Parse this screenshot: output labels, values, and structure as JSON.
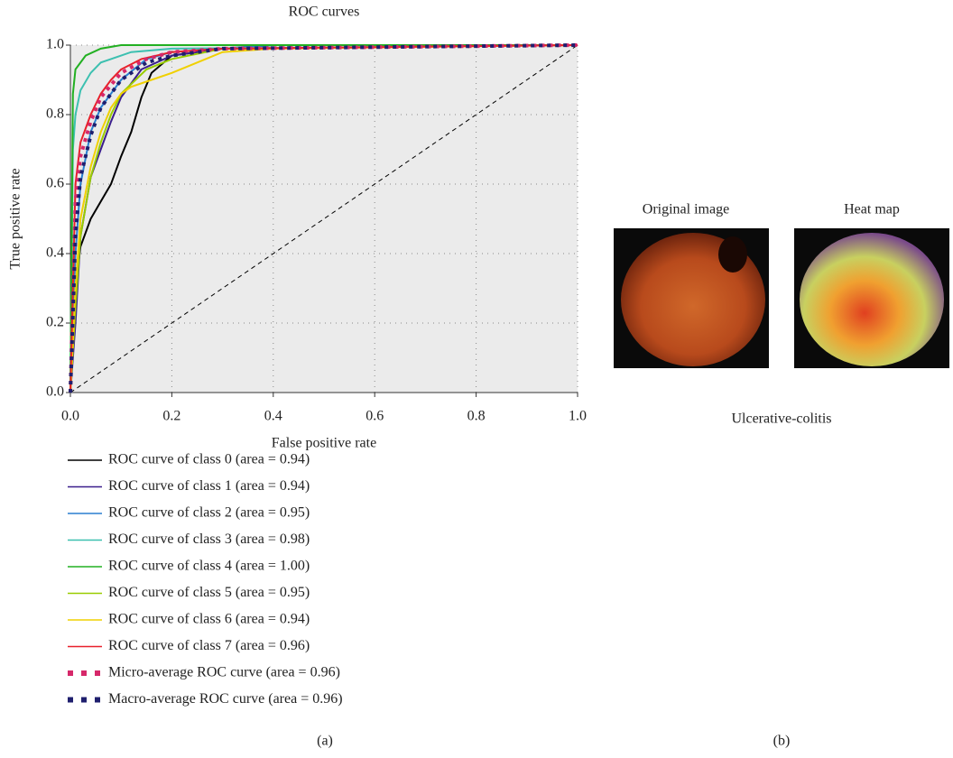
{
  "chart_data": {
    "type": "line",
    "title": "ROC curves",
    "xlabel": "False positive rate",
    "ylabel": "True positive rate",
    "xlim": [
      0,
      1
    ],
    "ylim": [
      0,
      1
    ],
    "xticks": [
      {
        "value": 0,
        "label": "0.0"
      },
      0.2,
      0.4,
      0.6,
      0.8,
      {
        "value": 1,
        "label": "1.0"
      }
    ],
    "yticks": [
      {
        "value": 0,
        "label": "0.0"
      },
      0.2,
      0.4,
      0.6,
      0.8,
      {
        "value": 1,
        "label": "1.0"
      }
    ],
    "grid": true,
    "series": [
      {
        "name": "ROC curve of class 0 (area = 0.94)",
        "color": "#000000",
        "x": [
          0,
          0.01,
          0.02,
          0.04,
          0.06,
          0.08,
          0.1,
          0.12,
          0.14,
          0.16,
          0.2,
          0.3,
          0.4,
          1
        ],
        "values": [
          0,
          0.3,
          0.42,
          0.5,
          0.55,
          0.6,
          0.68,
          0.75,
          0.85,
          0.92,
          0.97,
          0.99,
          1,
          1
        ]
      },
      {
        "name": "ROC curve of class 1 (area = 0.94)",
        "color": "#3a1e8c",
        "x": [
          0,
          0.01,
          0.02,
          0.04,
          0.06,
          0.08,
          0.1,
          0.14,
          0.2,
          0.3,
          1
        ],
        "values": [
          0,
          0.2,
          0.45,
          0.62,
          0.7,
          0.78,
          0.85,
          0.93,
          0.97,
          0.99,
          1
        ]
      },
      {
        "name": "ROC curve of class 2 (area = 0.95)",
        "color": "#2a7fd0",
        "x": [
          0,
          0.01,
          0.02,
          0.04,
          0.06,
          0.1,
          0.15,
          0.2,
          0.4,
          1
        ],
        "values": [
          0,
          0.4,
          0.6,
          0.75,
          0.82,
          0.9,
          0.96,
          0.98,
          1,
          1
        ]
      },
      {
        "name": "ROC curve of class 3 (area = 0.98)",
        "color": "#3cc0b0",
        "x": [
          0,
          0.005,
          0.01,
          0.02,
          0.04,
          0.06,
          0.08,
          0.12,
          0.2,
          1
        ],
        "values": [
          0,
          0.7,
          0.8,
          0.87,
          0.92,
          0.95,
          0.96,
          0.98,
          0.99,
          1
        ]
      },
      {
        "name": "ROC curve of class 4 (area = 1.00)",
        "color": "#22b022",
        "x": [
          0,
          0.005,
          0.01,
          0.03,
          0.06,
          0.1,
          1
        ],
        "values": [
          0,
          0.86,
          0.93,
          0.97,
          0.99,
          1,
          1
        ]
      },
      {
        "name": "ROC curve of class 5 (area = 0.95)",
        "color": "#99cc00",
        "x": [
          0,
          0.01,
          0.02,
          0.04,
          0.06,
          0.08,
          0.1,
          0.15,
          0.2,
          0.3,
          1
        ],
        "values": [
          0,
          0.25,
          0.45,
          0.62,
          0.72,
          0.8,
          0.86,
          0.93,
          0.96,
          0.99,
          1
        ]
      },
      {
        "name": "ROC curve of class 6 (area = 0.94)",
        "color": "#f0d000",
        "x": [
          0,
          0.01,
          0.02,
          0.04,
          0.06,
          0.08,
          0.1,
          0.12,
          0.16,
          0.2,
          0.25,
          0.3,
          0.4,
          1
        ],
        "values": [
          0,
          0.3,
          0.5,
          0.65,
          0.75,
          0.82,
          0.86,
          0.88,
          0.9,
          0.92,
          0.95,
          0.98,
          0.99,
          1
        ]
      },
      {
        "name": "ROC curve of class 7 (area = 0.96)",
        "color": "#e8202a",
        "x": [
          0,
          0.01,
          0.02,
          0.04,
          0.06,
          0.08,
          0.1,
          0.14,
          0.2,
          0.3,
          1
        ],
        "values": [
          0,
          0.6,
          0.72,
          0.8,
          0.86,
          0.9,
          0.93,
          0.96,
          0.98,
          0.99,
          1
        ]
      },
      {
        "name": "Micro-average ROC curve (area = 0.96)",
        "color": "#d6286a",
        "style": "dotted",
        "x": [
          0,
          0.01,
          0.02,
          0.04,
          0.06,
          0.1,
          0.15,
          0.2,
          0.3,
          1
        ],
        "values": [
          0,
          0.55,
          0.68,
          0.78,
          0.85,
          0.92,
          0.96,
          0.98,
          0.99,
          1
        ]
      },
      {
        "name": "Macro-average ROC curve (area = 0.96)",
        "color": "#1f1f6e",
        "style": "dotted",
        "x": [
          0,
          0.01,
          0.02,
          0.04,
          0.06,
          0.1,
          0.15,
          0.2,
          0.3,
          1
        ],
        "values": [
          0,
          0.45,
          0.62,
          0.74,
          0.82,
          0.9,
          0.95,
          0.97,
          0.99,
          1
        ]
      }
    ]
  },
  "panel_a": {
    "label": "(a)"
  },
  "panel_b": {
    "label": "(b)",
    "images": [
      "Original image",
      "Heat map"
    ],
    "caption": "Ulcerative-colitis"
  }
}
